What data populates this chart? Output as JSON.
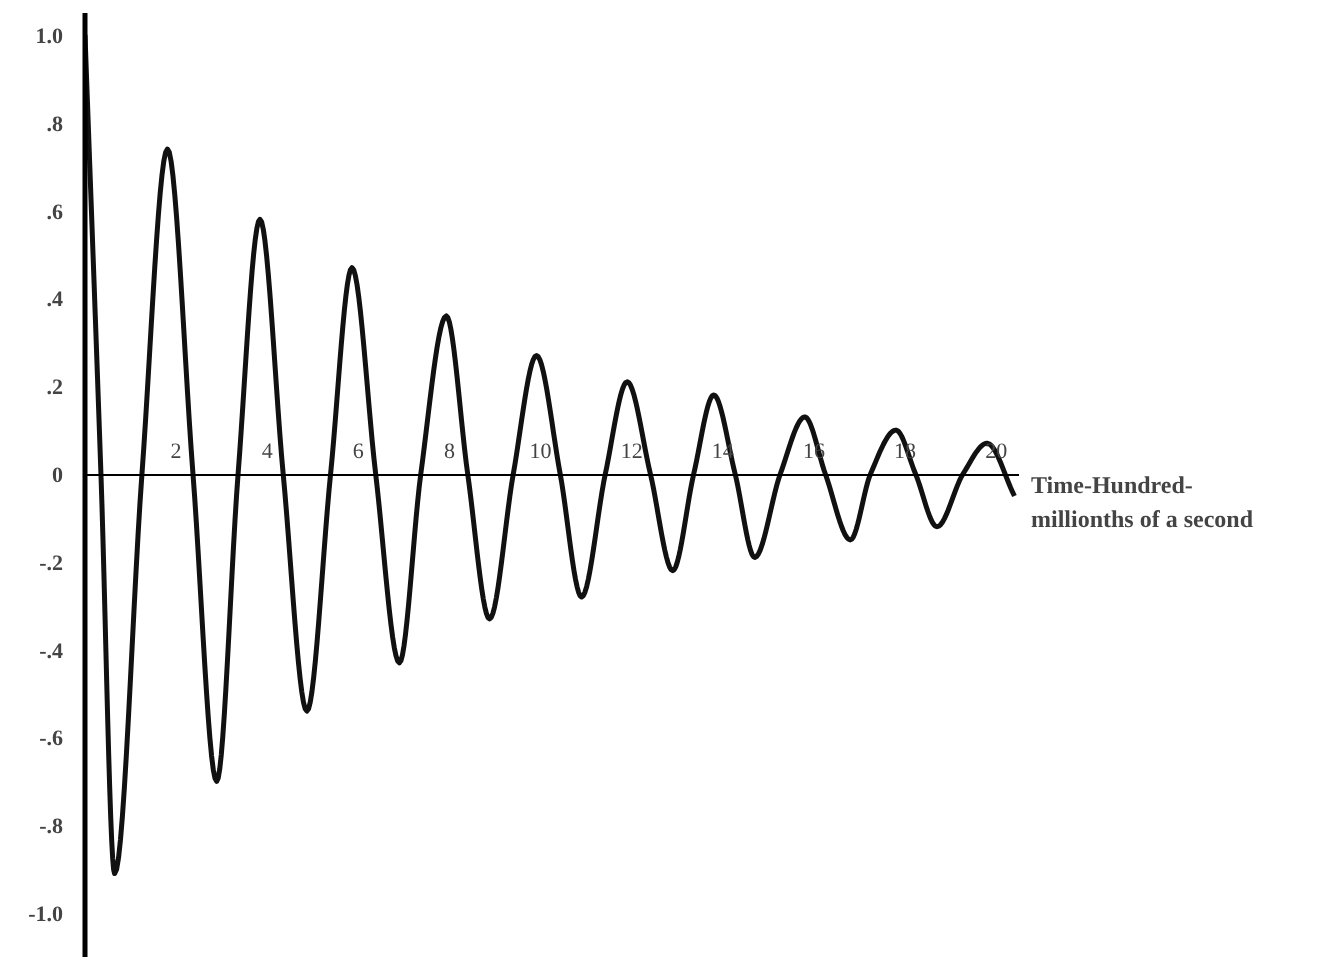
{
  "chart_data": {
    "type": "line",
    "xlabel": "Time-Hundred-\nmillionths of a second",
    "x": [
      0,
      0.35,
      0.65,
      1.25,
      1.81,
      2.37,
      2.89,
      3.36,
      3.84,
      4.35,
      4.87,
      5.39,
      5.86,
      6.38,
      6.9,
      7.37,
      7.93,
      8.4,
      8.88,
      9.4,
      9.91,
      10.43,
      10.9,
      11.42,
      11.9,
      12.41,
      12.9,
      13.36,
      13.8,
      14.27,
      14.7,
      15.26,
      15.8,
      16.25,
      16.8,
      17.24,
      17.8,
      18.23,
      18.7,
      19.27,
      19.8,
      20.4
    ],
    "series": [
      {
        "color": "#111111",
        "values": [
          1.0,
          0,
          -0.91,
          0,
          0.74,
          0,
          -0.7,
          0,
          0.58,
          0,
          -0.54,
          0,
          0.47,
          0,
          -0.43,
          0,
          0.36,
          0,
          -0.33,
          0,
          0.27,
          0,
          -0.28,
          0,
          0.21,
          0,
          -0.22,
          0,
          0.18,
          0,
          -0.19,
          0,
          0.13,
          0,
          -0.15,
          0,
          0.1,
          0,
          -0.12,
          0,
          0.07,
          -0.05
        ]
      }
    ],
    "xlim": [
      0,
      20.5
    ],
    "xticks": [
      2,
      4,
      6,
      8,
      10,
      12,
      14,
      16,
      18,
      20
    ],
    "ylim": [
      -1.1,
      1.05
    ],
    "yticks": [
      {
        "value": 1.0,
        "label": "1.0"
      },
      {
        "value": 0.8,
        "label": ".8"
      },
      {
        "value": 0.6,
        "label": ".6"
      },
      {
        "value": 0.4,
        "label": ".4"
      },
      {
        "value": 0.2,
        "label": ".2"
      },
      0,
      {
        "value": -0.2,
        "label": "-.2"
      },
      {
        "value": -0.4,
        "label": "-.4"
      },
      {
        "value": -0.6,
        "label": "-.6"
      },
      {
        "value": -0.8,
        "label": "-.8"
      },
      {
        "value": -1.0,
        "label": "-1.0"
      }
    ],
    "grid": false,
    "line_style": "solid"
  }
}
